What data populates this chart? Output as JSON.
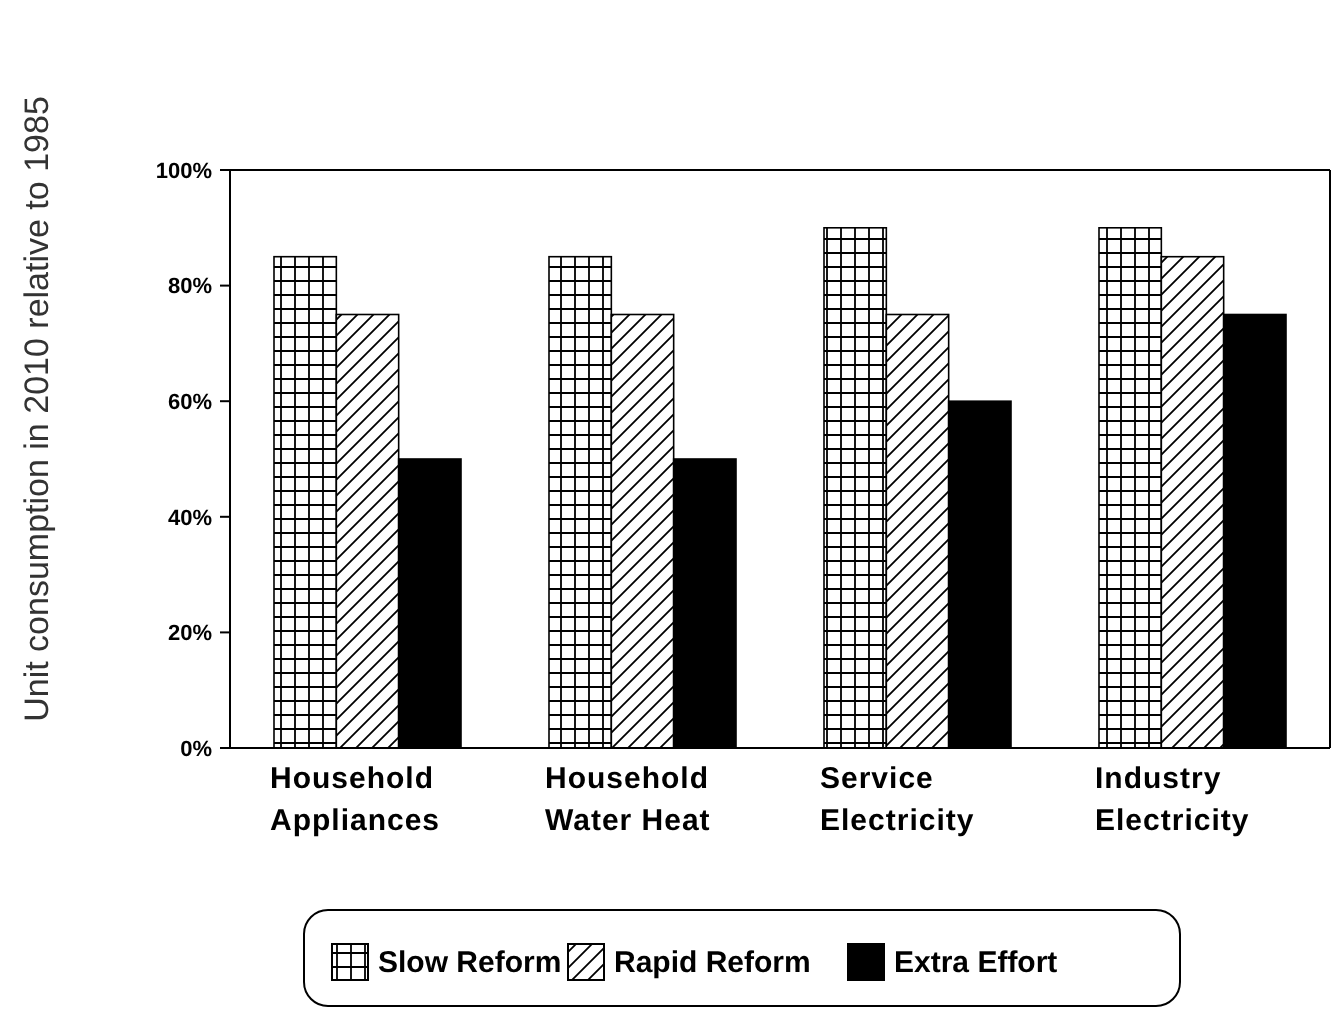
{
  "chart_data": {
    "type": "bar",
    "ylabel": "Unit consumption in 2010 relative to 1985",
    "categories": [
      "Household Appliances",
      "Household Water Heat",
      "Service Electricity",
      "Industry Electricity"
    ],
    "series": [
      {
        "name": "Slow Reform",
        "color": "#000000",
        "values": [
          85,
          85,
          90,
          90
        ]
      },
      {
        "name": "Rapid Reform",
        "color": "#000000",
        "values": [
          75,
          75,
          75,
          85
        ]
      },
      {
        "name": "Extra Effort",
        "color": "#000000",
        "values": [
          50,
          50,
          60,
          75
        ]
      }
    ],
    "ylim": [
      0,
      100
    ],
    "yticks": [
      {
        "value": 0,
        "label": "0%"
      },
      {
        "value": 20,
        "label": "20%"
      },
      {
        "value": 40,
        "label": "40%"
      },
      {
        "value": 60,
        "label": "60%"
      },
      {
        "value": 80,
        "label": "80%"
      },
      {
        "value": 100,
        "label": "100%"
      }
    ],
    "grid": false,
    "legend": "bottom"
  }
}
